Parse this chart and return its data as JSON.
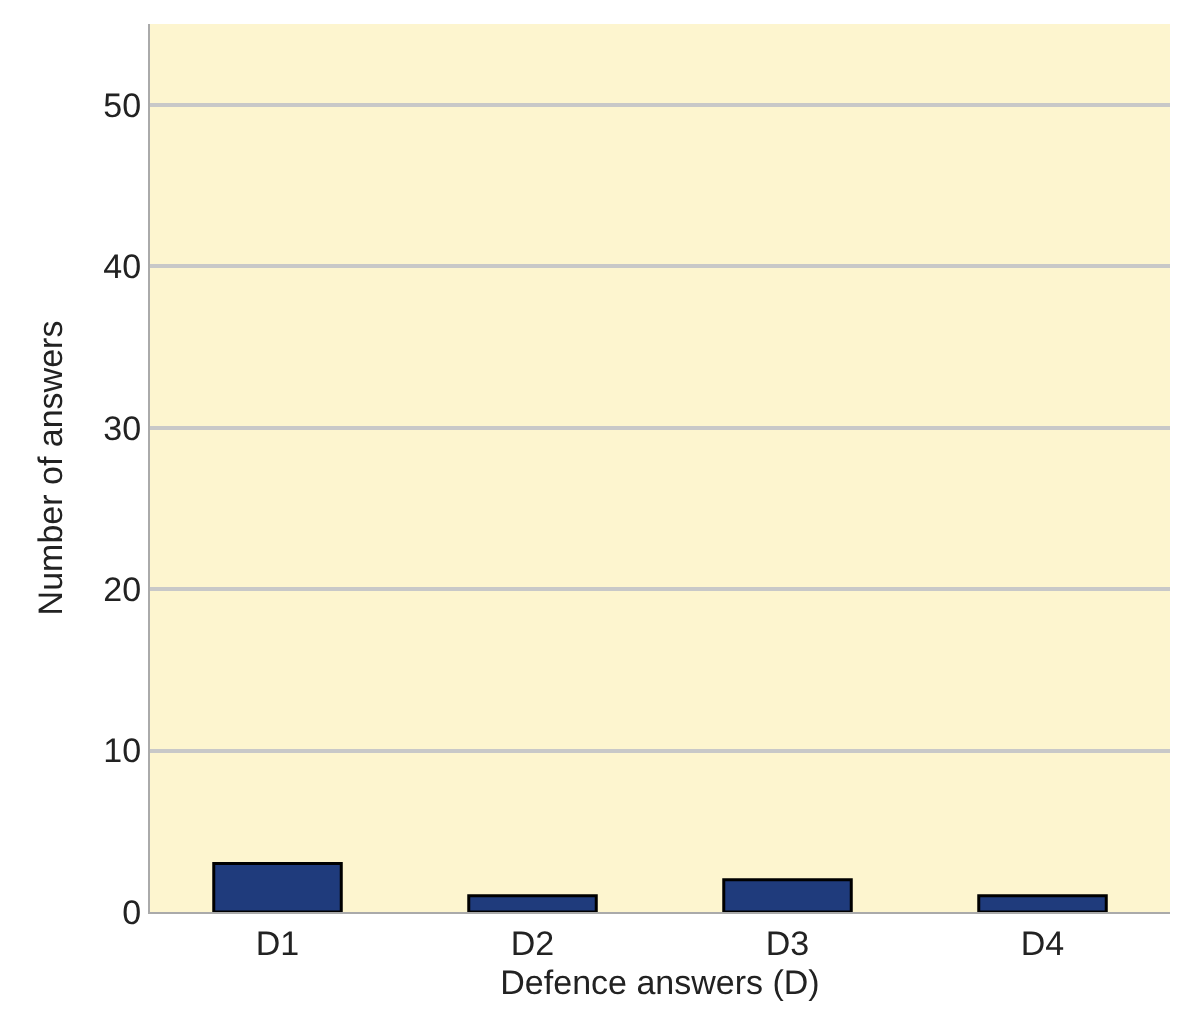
{
  "chart_data": {
    "type": "bar",
    "xlabel": "Defence answers (D)",
    "ylabel": "Number of answers",
    "categories": [
      "D1",
      "D2",
      "D3",
      "D4"
    ],
    "values": [
      3,
      1,
      2,
      1
    ],
    "color": "#1f3b7c",
    "ylim": [
      0,
      55
    ],
    "yticks": [
      0,
      10,
      20,
      30,
      40,
      50
    ],
    "grid": "y",
    "legend": false
  }
}
